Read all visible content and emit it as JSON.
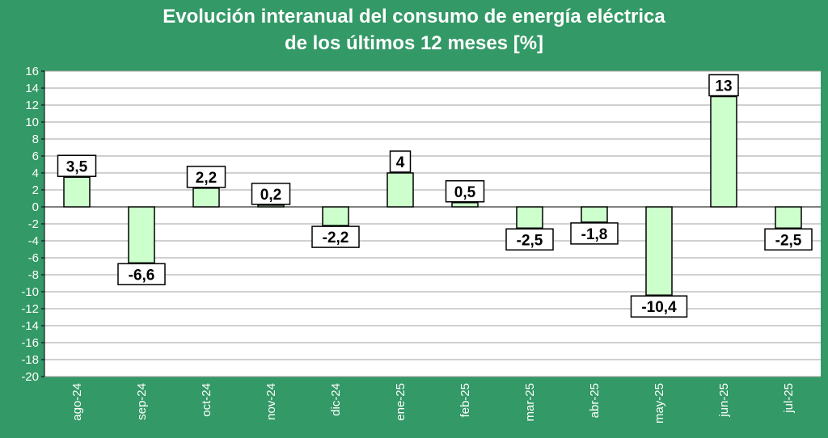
{
  "chart_data": {
    "type": "bar",
    "title_line1": "Evolución interanual del consumo  de energía eléctrica",
    "title_line2": "de los últimos 12 meses [%]",
    "categories": [
      "ago-24",
      "sep-24",
      "oct-24",
      "nov-24",
      "dic-24",
      "ene-25",
      "feb-25",
      "mar-25",
      "abr-25",
      "may-25",
      "jun-25",
      "jul-25"
    ],
    "values": [
      3.5,
      -6.6,
      2.2,
      0.2,
      -2.2,
      4,
      0.5,
      -2.5,
      -1.8,
      -10.4,
      13,
      -2.5
    ],
    "data_labels": [
      "3,5",
      "-6,6",
      "2,2",
      "0,2",
      "-2,2",
      "4",
      "0,5",
      "-2,5",
      "-1,8",
      "-10,4",
      "13",
      "-2,5"
    ],
    "ylim": [
      -20,
      16
    ],
    "ytick_step": 2,
    "ytick_labels": [
      "16",
      "14",
      "12",
      "10",
      "8",
      "6",
      "4",
      "2",
      "0",
      "-2",
      "-4",
      "-6",
      "-8",
      "-10",
      "-12",
      "-14",
      "-16",
      "-18",
      "-20"
    ],
    "grid": true,
    "colors": {
      "background": "#339966",
      "plot_area": "#ffffff",
      "bar_fill": "#ccffcc",
      "bar_stroke": "#000000",
      "grid": "#a0a0a0",
      "text": "#ffffff"
    }
  }
}
